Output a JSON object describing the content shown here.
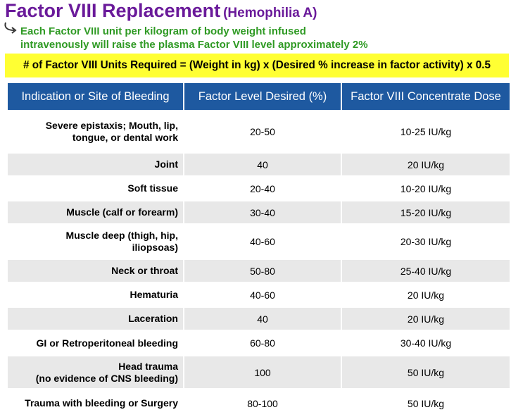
{
  "header": {
    "title": "Factor VIII Replacement",
    "subtitle": "(Hemophilia A)"
  },
  "note": {
    "icon": "curved-arrow-icon",
    "line1": "Each Factor VIII unit per kilogram of body weight infused",
    "line2": "intravenously will raise the plasma Factor VIII level approximately 2%"
  },
  "formula": "# of Factor VIII Units Required = (Weight in kg) x (Desired % increase in factor activity) x 0.5",
  "colors": {
    "title": "#6a1a9a",
    "note": "#2f9a24",
    "highlight": "#ffff33",
    "table_header": "#1e59a0",
    "row_alt": "#e8e8e8"
  },
  "table": {
    "headers": [
      "Indication or Site of Bleeding",
      "Factor Level Desired (%)",
      "Factor VIII Concentrate Dose"
    ],
    "rows": [
      {
        "indication_lines": [
          "Severe epistaxis; Mouth, lip,",
          "tongue, or dental work"
        ],
        "level": "20-50",
        "dose": "10-25 IU/kg"
      },
      {
        "indication_lines": [
          "Joint"
        ],
        "level": "40",
        "dose": "20 IU/kg"
      },
      {
        "indication_lines": [
          "Soft tissue"
        ],
        "level": "20-40",
        "dose": "10-20 IU/kg"
      },
      {
        "indication_lines": [
          "Muscle (calf or forearm)"
        ],
        "level": "30-40",
        "dose": "15-20 IU/kg"
      },
      {
        "indication_lines": [
          "Muscle deep (thigh, hip,",
          "iliopsoas)"
        ],
        "level": "40-60",
        "dose": "20-30 IU/kg"
      },
      {
        "indication_lines": [
          "Neck or throat"
        ],
        "level": "50-80",
        "dose": "25-40 IU/kg"
      },
      {
        "indication_lines": [
          "Hematuria"
        ],
        "level": "40-60",
        "dose": "20 IU/kg"
      },
      {
        "indication_lines": [
          "Laceration"
        ],
        "level": "40",
        "dose": "20 IU/kg"
      },
      {
        "indication_lines": [
          "GI or Retroperitoneal bleeding"
        ],
        "level": "60-80",
        "dose": "30-40 IU/kg"
      },
      {
        "indication_lines": [
          "Head trauma",
          "(no evidence of CNS bleeding)"
        ],
        "level": "100",
        "dose": "50 IU/kg"
      },
      {
        "indication_lines": [
          "Trauma with bleeding or Surgery"
        ],
        "level": "80-100",
        "dose": "50 IU/kg"
      }
    ]
  }
}
